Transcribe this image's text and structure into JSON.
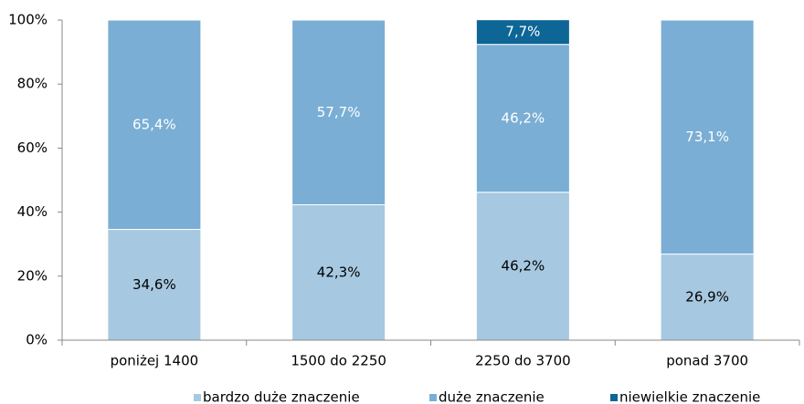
{
  "chart_data": {
    "type": "stacked_bar",
    "categories": [
      "poniżej 1400",
      "1500 do 2250",
      "2250 do 3700",
      "ponad 3700"
    ],
    "series": [
      {
        "name": "bardzo duże znaczenie",
        "color": "#a6c8e0",
        "values": [
          34.6,
          42.3,
          46.2,
          26.9
        ],
        "value_labels": [
          "34,6%",
          "42,3%",
          "46,2%",
          "26,9%"
        ]
      },
      {
        "name": "duże znaczenie",
        "color": "#7aaed4",
        "values": [
          65.4,
          57.7,
          46.2,
          73.1
        ],
        "value_labels": [
          "65,4%",
          "57,7%",
          "46,2%",
          "73,1%"
        ]
      },
      {
        "name": "niewielkie znaczenie",
        "color": "#0d6696",
        "values": [
          null,
          null,
          7.7,
          null
        ],
        "value_labels": [
          null,
          null,
          "7,7%",
          null
        ]
      }
    ],
    "ylim": [
      0,
      100
    ],
    "yticks": [
      {
        "value": 0,
        "label": "0%"
      },
      {
        "value": 20,
        "label": "20%"
      },
      {
        "value": 40,
        "label": "40%"
      },
      {
        "value": 60,
        "label": "60%"
      },
      {
        "value": 80,
        "label": "80%"
      },
      {
        "value": 100,
        "label": "100%"
      }
    ],
    "legend": "bottom"
  }
}
